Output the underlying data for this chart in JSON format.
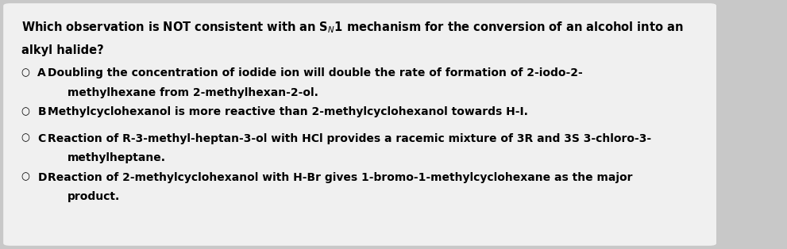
{
  "background_color": "#c8c8c8",
  "box_color": "#f0f0f0",
  "text_color": "#000000",
  "title": "Which observation is NOT consistent with an SÔ1 mechanism for the conversion of an alcohol into an\nalkyl halide?",
  "title_bold": true,
  "title_fontsize": 10.5,
  "options": [
    {
      "label": "A",
      "circle": true,
      "text": "Doubling the concentration of iodide ion will double the rate of formation of 2-iodo-2-\n        methylhexane from 2-methylhexan-2-ol.",
      "bold": true,
      "fontsize": 10.0
    },
    {
      "label": "B",
      "circle": true,
      "text": "Methylcyclohexanol is more reactive than 2-methylcyclohexanol towards H-I.",
      "bold": true,
      "fontsize": 10.0
    },
    {
      "label": "C",
      "circle": true,
      "text": "Reaction of R-3-methyl-heptan-3-ol with HCl provides a racemic mixture of 3R and 3S 3-chloro-3-\n        methylheptane.",
      "bold": true,
      "fontsize": 10.0
    },
    {
      "label": "D",
      "circle": true,
      "text": "Reaction of 2-methylcyclohexanol with H-Br gives 1-bromo-1-methylcyclohexane as the major\n        product.",
      "bold": true,
      "fontsize": 10.0
    }
  ],
  "figsize": [
    9.91,
    3.14
  ],
  "dpi": 100
}
